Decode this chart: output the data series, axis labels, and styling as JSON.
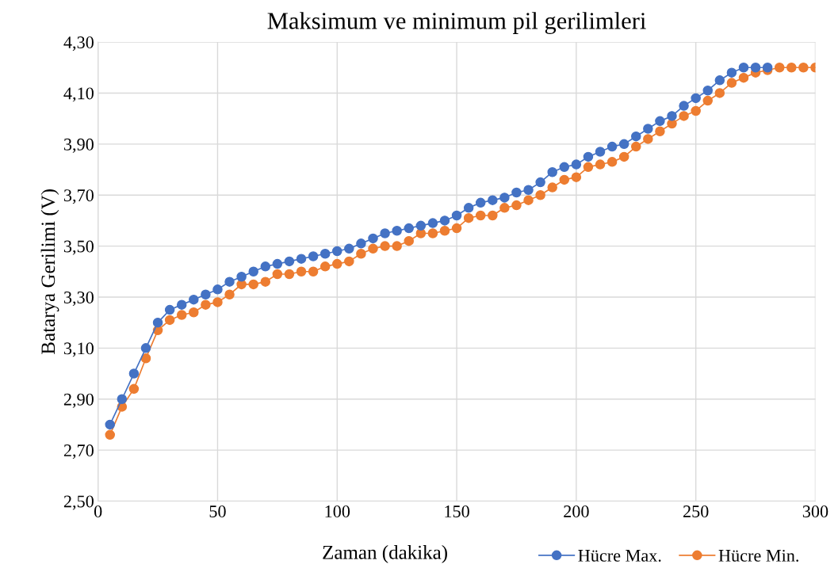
{
  "chart_data": {
    "type": "line",
    "title": "Maksimum ve minimum pil gerilimleri",
    "xlabel": "Zaman (dakika)",
    "ylabel": "Batarya Gerilimi (V)",
    "x": [
      5,
      10,
      15,
      20,
      25,
      30,
      35,
      40,
      45,
      50,
      55,
      60,
      65,
      70,
      75,
      80,
      85,
      90,
      95,
      100,
      105,
      110,
      115,
      120,
      125,
      130,
      135,
      140,
      145,
      150,
      155,
      160,
      165,
      170,
      175,
      180,
      185,
      190,
      195,
      200,
      205,
      210,
      215,
      220,
      225,
      230,
      235,
      240,
      245,
      250,
      255,
      260,
      265,
      270,
      275,
      280,
      285,
      290,
      295,
      300
    ],
    "series": [
      {
        "name": "Hücre Max.",
        "color": "#4472c4",
        "values": [
          2.8,
          2.9,
          3.0,
          3.1,
          3.2,
          3.25,
          3.27,
          3.29,
          3.31,
          3.33,
          3.36,
          3.38,
          3.4,
          3.42,
          3.43,
          3.44,
          3.45,
          3.46,
          3.47,
          3.48,
          3.49,
          3.51,
          3.53,
          3.55,
          3.56,
          3.57,
          3.58,
          3.59,
          3.6,
          3.62,
          3.65,
          3.67,
          3.68,
          3.69,
          3.71,
          3.72,
          3.75,
          3.79,
          3.81,
          3.82,
          3.85,
          3.87,
          3.89,
          3.9,
          3.93,
          3.96,
          3.99,
          4.01,
          4.05,
          4.08,
          4.11,
          4.15,
          4.18,
          4.2,
          4.2,
          4.2,
          null,
          null,
          null,
          null
        ]
      },
      {
        "name": "Hücre Min.",
        "color": "#ed7d31",
        "values": [
          2.76,
          2.87,
          2.94,
          3.06,
          3.17,
          3.21,
          3.23,
          3.24,
          3.27,
          3.28,
          3.31,
          3.35,
          3.35,
          3.36,
          3.39,
          3.39,
          3.4,
          3.4,
          3.42,
          3.43,
          3.44,
          3.47,
          3.49,
          3.5,
          3.5,
          3.52,
          3.55,
          3.55,
          3.56,
          3.57,
          3.61,
          3.62,
          3.62,
          3.65,
          3.66,
          3.68,
          3.7,
          3.73,
          3.76,
          3.77,
          3.81,
          3.82,
          3.83,
          3.85,
          3.89,
          3.92,
          3.95,
          3.98,
          4.01,
          4.03,
          4.07,
          4.1,
          4.14,
          4.16,
          4.18,
          4.19,
          4.2,
          4.2,
          4.2,
          4.2
        ]
      }
    ],
    "xlim": [
      0,
      300
    ],
    "xticks": [
      0,
      50,
      100,
      150,
      200,
      250,
      300
    ],
    "ylim": [
      2.5,
      4.3
    ],
    "yticks": [
      {
        "value": 2.5,
        "label": "2,50"
      },
      {
        "value": 2.7,
        "label": "2,70"
      },
      {
        "value": 2.9,
        "label": "2,90"
      },
      {
        "value": 3.1,
        "label": "3,10"
      },
      {
        "value": 3.3,
        "label": "3,30"
      },
      {
        "value": 3.5,
        "label": "3,50"
      },
      {
        "value": 3.7,
        "label": "3,70"
      },
      {
        "value": 3.9,
        "label": "3,90"
      },
      {
        "value": 4.1,
        "label": "4,10"
      },
      {
        "value": 4.3,
        "label": "4,30"
      }
    ],
    "grid": true,
    "legend": "bottom right",
    "marker": "circle",
    "line_style": "solid"
  }
}
